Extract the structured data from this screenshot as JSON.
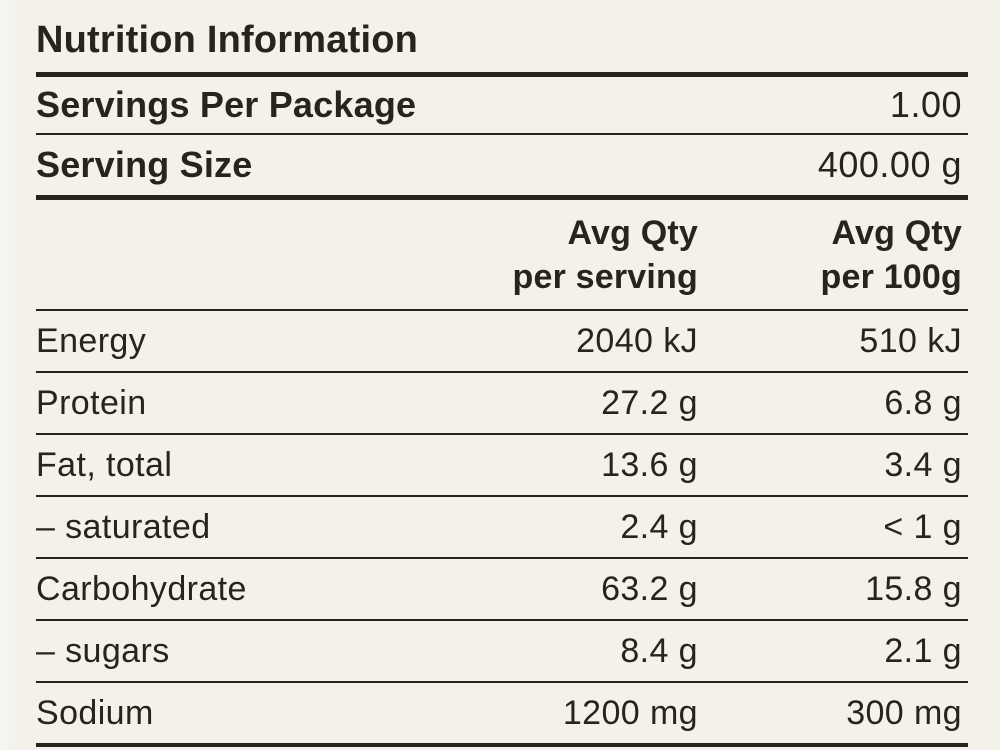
{
  "panel": {
    "title": "Nutrition Information",
    "servings_per_package": {
      "label": "Servings Per Package",
      "value": "1.00"
    },
    "serving_size": {
      "label": "Serving Size",
      "value": "400.00 g"
    },
    "columns": {
      "per_serving": {
        "line1": "Avg Qty",
        "line2": "per serving"
      },
      "per_100g": {
        "line1": "Avg Qty",
        "line2": "per 100g"
      }
    },
    "rows": [
      {
        "label": "Energy",
        "per_serving": "2040 kJ",
        "per_100g": "510 kJ"
      },
      {
        "label": "Protein",
        "per_serving": "27.2 g",
        "per_100g": "6.8 g"
      },
      {
        "label": "Fat, total",
        "per_serving": "13.6 g",
        "per_100g": "3.4 g"
      },
      {
        "label": "– saturated",
        "per_serving": "2.4 g",
        "per_100g": "< 1 g"
      },
      {
        "label": "Carbohydrate",
        "per_serving": "63.2 g",
        "per_100g": "15.8 g"
      },
      {
        "label": "– sugars",
        "per_serving": "8.4 g",
        "per_100g": "2.1 g"
      },
      {
        "label": "Sodium",
        "per_serving": "1200 mg",
        "per_100g": "300 mg"
      }
    ],
    "colors": {
      "background": "#f3f1ea",
      "text": "#27241e",
      "rule": "#27241e"
    }
  }
}
